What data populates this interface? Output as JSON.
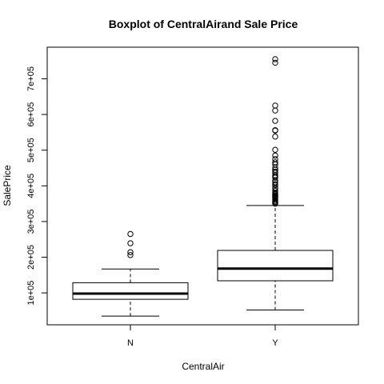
{
  "chart_data": {
    "type": "boxplot",
    "title": "Boxplot of CentralAirand Sale Price",
    "xlabel": "CentralAir",
    "ylabel": "SalePrice",
    "categories": [
      "N",
      "Y"
    ],
    "ylim": [
      0,
      770000
    ],
    "yticks": [
      100000,
      200000,
      300000,
      400000,
      500000,
      600000,
      700000
    ],
    "ytick_labels": [
      "1e+05",
      "2e+05",
      "3e+05",
      "4e+05",
      "5e+05",
      "6e+05",
      "7e+05"
    ],
    "grid": false,
    "boxes": [
      {
        "category": "N",
        "min": 35000,
        "q1": 82000,
        "median": 98000,
        "q3": 128500,
        "max": 167000,
        "outliers": [
          265000,
          239000,
          214000,
          206000
        ]
      },
      {
        "category": "Y",
        "min": 52000,
        "q1": 133900,
        "median": 168000,
        "q3": 219000,
        "max": 345000,
        "outliers": [
          755000,
          745000,
          625000,
          611000,
          582000,
          556000,
          555000,
          538000,
          501000,
          485000,
          475000,
          466000,
          460000,
          451000,
          445000,
          440000,
          437000,
          430000,
          426000,
          423000,
          415000,
          410000,
          405000,
          402000,
          395000,
          392000,
          386000,
          380000,
          377000,
          374000,
          372000,
          370000,
          368000,
          365000,
          361000,
          358000,
          355000,
          352000,
          350000
        ]
      }
    ]
  }
}
